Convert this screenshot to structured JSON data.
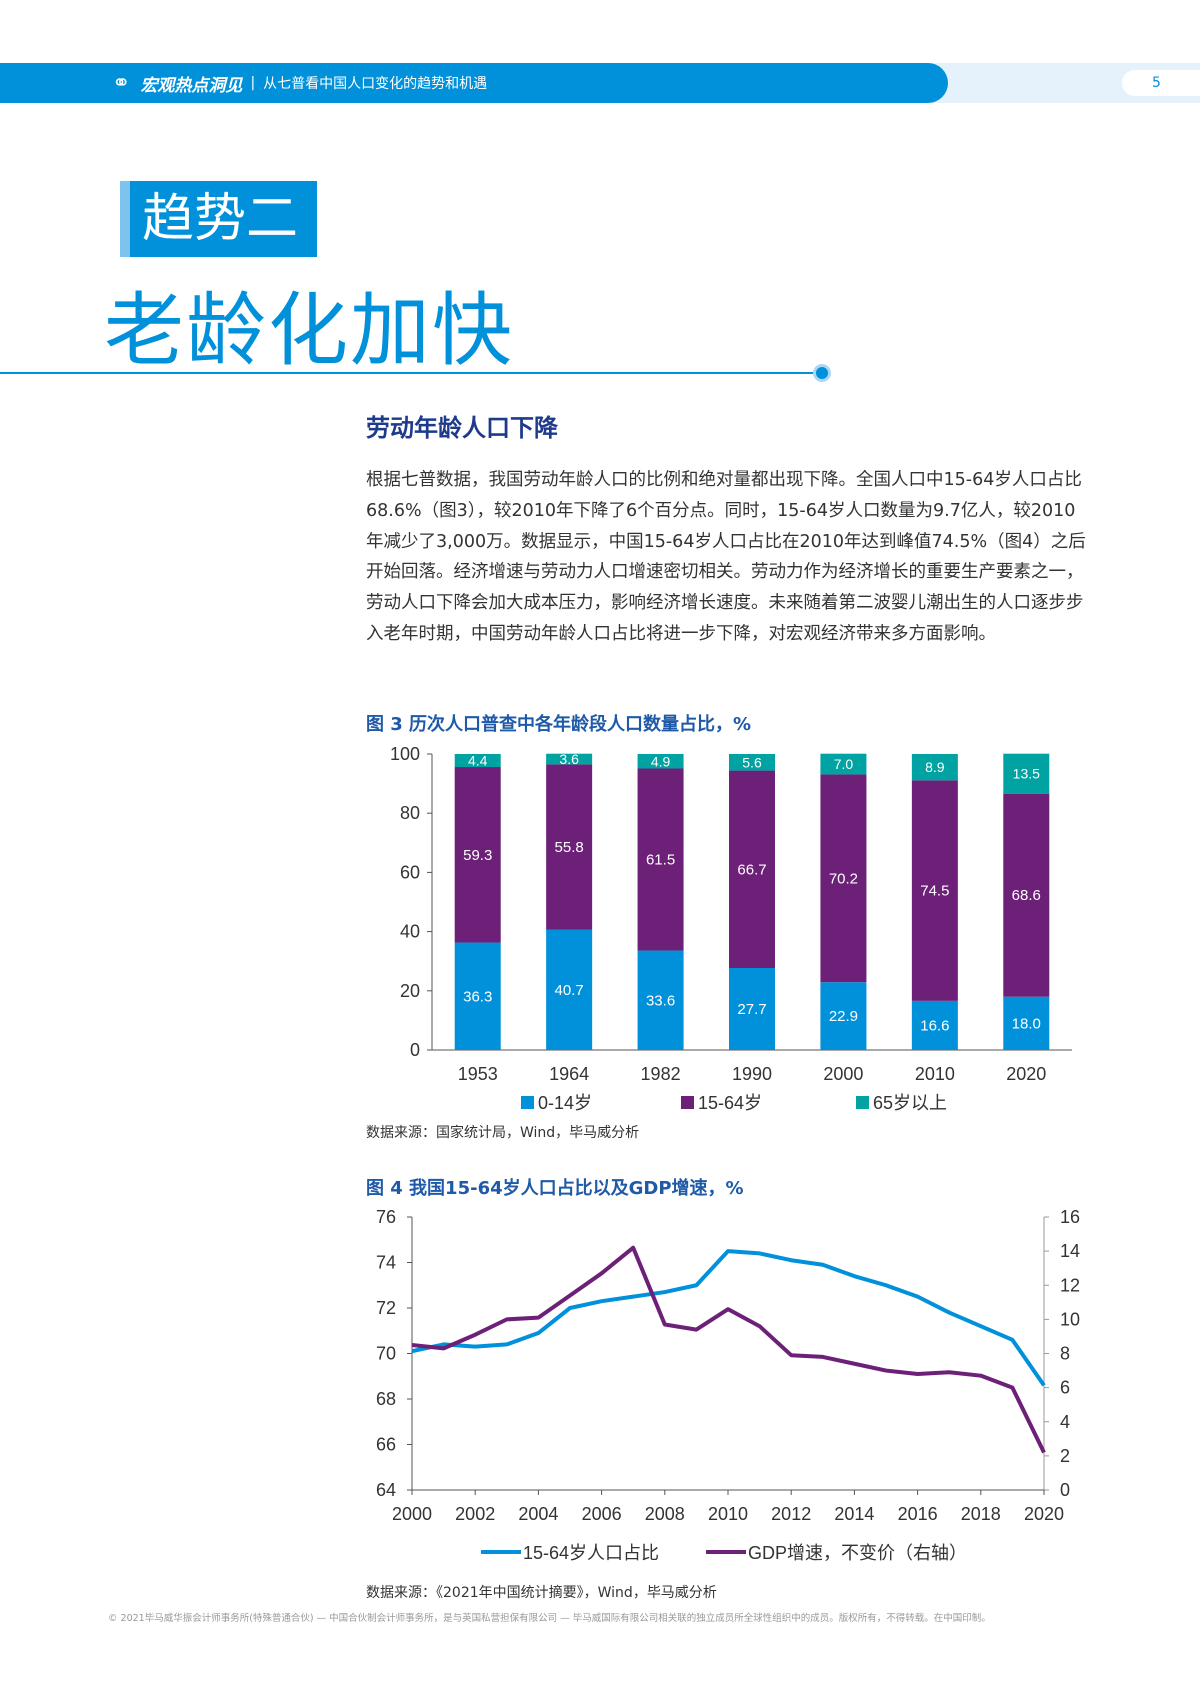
{
  "header": {
    "brand": "宏观热点洞见",
    "separator": "|",
    "subtitle": "从七普看中国人口变化的趋势和机遇",
    "page_number": "5",
    "brand_color": "#0091da"
  },
  "tag": "趋势二",
  "title": "老龄化加快",
  "section_heading": "劳动年龄人口下降",
  "paragraph": "根据七普数据，我国劳动年龄人口的比例和绝对量都出现下降。全国人口中15-64岁人口占比68.6%（图3），较2010年下降了6个百分点。同时，15-64岁人口数量为9.7亿人，较2010年减少了3,000万。数据显示，中国15-64岁人口占比在2010年达到峰值74.5%（图4）之后开始回落。经济增速与劳动力人口增速密切相关。劳动力作为经济增长的重要生产要素之一，劳动人口下降会加大成本压力，影响经济增长速度。未来随着第二波婴儿潮出生的人口逐步步入老年时期，中国劳动年龄人口占比将进一步下降，对宏观经济带来多方面影响。",
  "fig3": {
    "caption": "图 3  历次人口普查中各年龄段人口数量占比，%",
    "source": "数据来源：国家统计局，Wind，毕马威分析"
  },
  "fig4": {
    "caption": "图 4  我国15-64岁人口占比以及GDP增速，%",
    "source": "数据来源：《2021年中国统计摘要》，Wind，毕马威分析"
  },
  "footer": "© 2021毕马威华振会计师事务所(特殊普通合伙) — 中国合伙制会计师事务所，是与英国私营担保有限公司 — 毕马威国际有限公司相关联的独立成员所全球性组织中的成员。版权所有，不得转载。在中国印制。",
  "chart_data": [
    {
      "type": "bar",
      "stacked": true,
      "categories": [
        "1953",
        "1964",
        "1982",
        "1990",
        "2000",
        "2010",
        "2020"
      ],
      "series": [
        {
          "name": "0-14岁",
          "color": "#0091da",
          "values": [
            36.3,
            40.7,
            33.6,
            27.7,
            22.9,
            16.6,
            18.0
          ],
          "labels": [
            "36.3",
            "40.7",
            "33.6",
            "27.7",
            "22.9",
            "16.6",
            "18.0"
          ]
        },
        {
          "name": "15-64岁",
          "color": "#6d2077",
          "values": [
            59.3,
            55.8,
            61.5,
            66.7,
            70.2,
            74.5,
            68.6
          ],
          "labels": [
            "59.3",
            "55.8",
            "61.5",
            "66.7",
            "70.2",
            "74.5",
            "68.6"
          ]
        },
        {
          "name": "65岁以上",
          "color": "#00a3a1",
          "values": [
            4.4,
            3.6,
            4.9,
            5.6,
            7.0,
            8.9,
            13.5
          ],
          "labels": [
            "4.4",
            "3.6",
            "4.9",
            "5.6",
            "7.0",
            "8.9",
            "13.5"
          ]
        }
      ],
      "ylim": [
        0,
        100
      ],
      "yticks": [
        "0",
        "20",
        "40",
        "60",
        "80",
        "100"
      ],
      "legend": "bottom"
    },
    {
      "type": "line",
      "x": [
        "2000",
        "2001",
        "2002",
        "2003",
        "2004",
        "2005",
        "2006",
        "2007",
        "2008",
        "2009",
        "2010",
        "2011",
        "2012",
        "2013",
        "2014",
        "2015",
        "2016",
        "2017",
        "2018",
        "2019",
        "2020"
      ],
      "xticks": [
        "2000",
        "2002",
        "2004",
        "2006",
        "2008",
        "2010",
        "2012",
        "2014",
        "2016",
        "2018",
        "2020"
      ],
      "series": [
        {
          "name": "15-64岁人口占比",
          "axis": "left",
          "color": "#0091da",
          "values": [
            70.1,
            70.4,
            70.3,
            70.4,
            70.9,
            72.0,
            72.3,
            72.5,
            72.7,
            73.0,
            74.5,
            74.4,
            74.1,
            73.9,
            73.4,
            73.0,
            72.5,
            71.8,
            71.2,
            70.6,
            68.6
          ]
        },
        {
          "name": "GDP增速，不变价（右轴）",
          "axis": "right",
          "color": "#6d2077",
          "values": [
            8.5,
            8.3,
            9.1,
            10.0,
            10.1,
            11.4,
            12.7,
            14.2,
            9.7,
            9.4,
            10.6,
            9.6,
            7.9,
            7.8,
            7.4,
            7.0,
            6.8,
            6.9,
            6.7,
            6.0,
            2.2
          ]
        }
      ],
      "ylim_left": [
        64,
        76
      ],
      "yticks_left": [
        "64",
        "66",
        "68",
        "70",
        "72",
        "74",
        "76"
      ],
      "ylim_right": [
        0,
        16
      ],
      "yticks_right": [
        "0",
        "2",
        "4",
        "6",
        "8",
        "10",
        "12",
        "14",
        "16"
      ],
      "legend": "bottom"
    }
  ]
}
